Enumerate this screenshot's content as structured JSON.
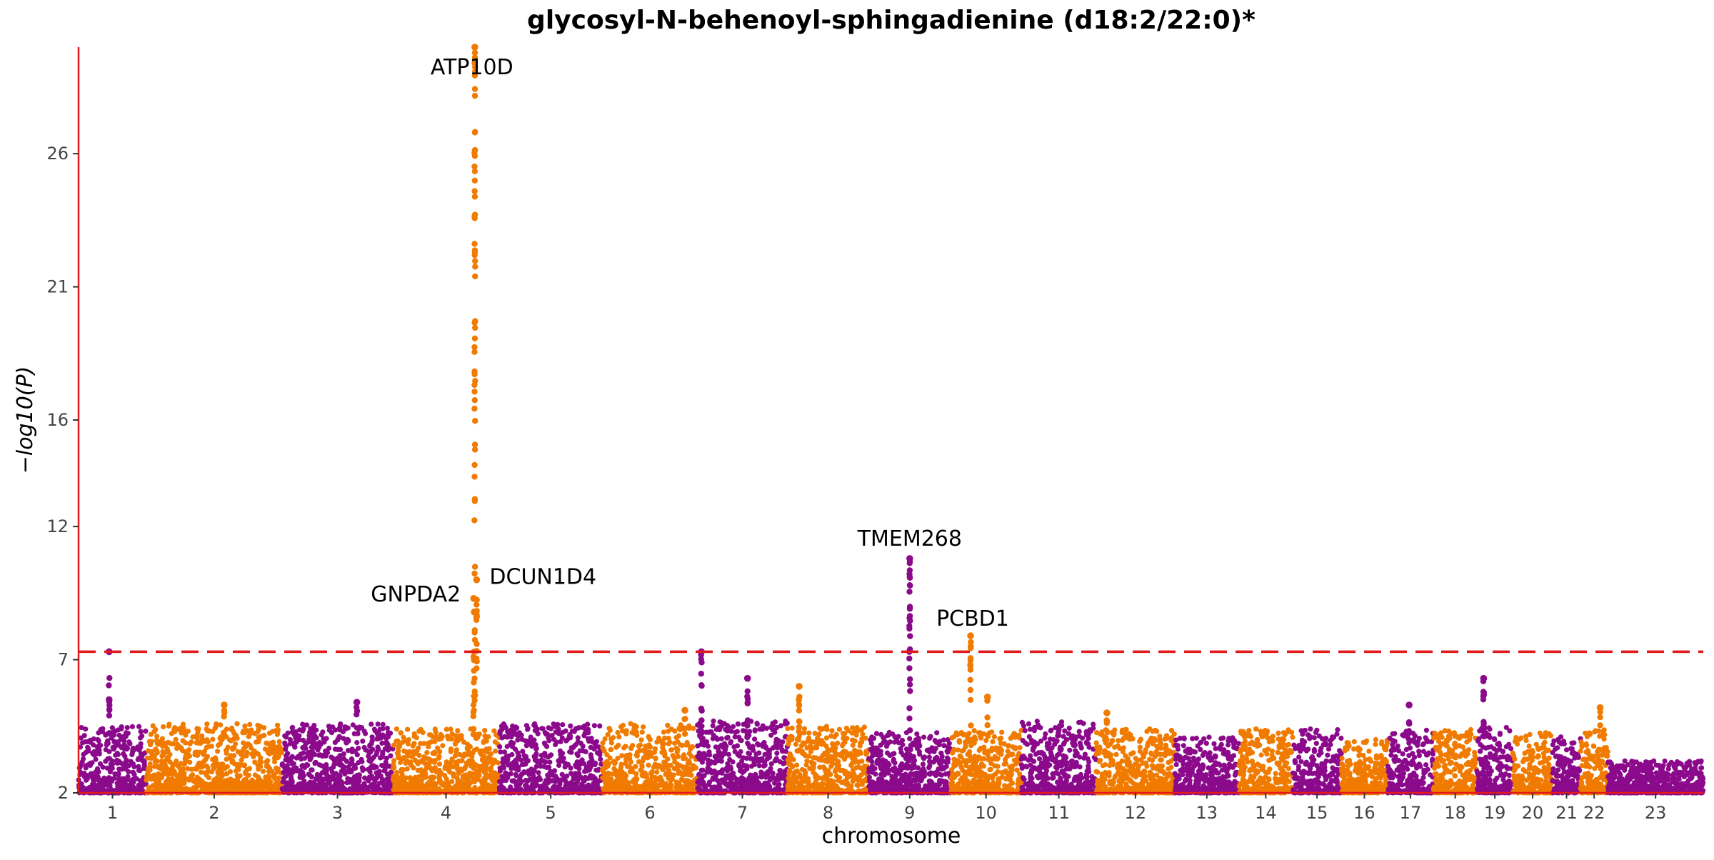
{
  "chart_data": {
    "type": "scatter",
    "title": "glycosyl-N-behenoyl-sphingadienine (d18:2/22:0)*",
    "xlabel": "chromosome",
    "ylabel": "−log10(P)",
    "ylim": [
      2,
      30
    ],
    "yticks": [
      2,
      7,
      12,
      16,
      21,
      26
    ],
    "significance_threshold": 7.3,
    "colors": {
      "odd_chromosome": "#8B0A8B",
      "even_chromosome": "#F07B00",
      "axis": "#e31a1c",
      "threshold_line": "#e31a1c"
    },
    "chromosomes": [
      {
        "label": "1",
        "start": 0,
        "end": 184,
        "base_max": 4.5
      },
      {
        "label": "2",
        "start": 184,
        "end": 552,
        "base_max": 4.6
      },
      {
        "label": "3",
        "start": 552,
        "end": 853,
        "base_max": 4.6
      },
      {
        "label": "4",
        "start": 853,
        "end": 1141,
        "base_max": 4.4
      },
      {
        "label": "5",
        "start": 1141,
        "end": 1421,
        "base_max": 4.6
      },
      {
        "label": "6",
        "start": 1421,
        "end": 1679,
        "base_max": 4.6
      },
      {
        "label": "7",
        "start": 1679,
        "end": 1923,
        "base_max": 4.7
      },
      {
        "label": "8",
        "start": 1923,
        "end": 2144,
        "base_max": 4.5
      },
      {
        "label": "9",
        "start": 2144,
        "end": 2366,
        "base_max": 4.3
      },
      {
        "label": "10",
        "start": 2366,
        "end": 2558,
        "base_max": 4.4
      },
      {
        "label": "11",
        "start": 2558,
        "end": 2761,
        "base_max": 4.7
      },
      {
        "label": "12",
        "start": 2761,
        "end": 2974,
        "base_max": 4.4
      },
      {
        "label": "13",
        "start": 2974,
        "end": 3148,
        "base_max": 4.1
      },
      {
        "label": "14",
        "start": 3148,
        "end": 3294,
        "base_max": 4.4
      },
      {
        "label": "15",
        "start": 3294,
        "end": 3426,
        "base_max": 4.4
      },
      {
        "label": "16",
        "start": 3426,
        "end": 3551,
        "base_max": 4.0
      },
      {
        "label": "17",
        "start": 3551,
        "end": 3676,
        "base_max": 4.4
      },
      {
        "label": "18",
        "start": 3676,
        "end": 3794,
        "base_max": 4.4
      },
      {
        "label": "19",
        "start": 3794,
        "end": 3891,
        "base_max": 4.5
      },
      {
        "label": "20",
        "start": 3891,
        "end": 3999,
        "base_max": 4.3
      },
      {
        "label": "21",
        "start": 3999,
        "end": 4075,
        "base_max": 4.1
      },
      {
        "label": "22",
        "start": 4075,
        "end": 4149,
        "base_max": 4.4
      },
      {
        "label": "23",
        "start": 4149,
        "end": 4408,
        "base_max": 3.2
      }
    ],
    "peaks": [
      {
        "chromosome": "1",
        "x": 83,
        "max": 7.3,
        "n": 4
      },
      {
        "chromosome": "1",
        "x": 83,
        "max": 5.5,
        "n": 4
      },
      {
        "chromosome": "2",
        "x": 395,
        "max": 5.3,
        "n": 4
      },
      {
        "chromosome": "3",
        "x": 755,
        "max": 5.4,
        "n": 3
      },
      {
        "chromosome": "4",
        "x": 1075,
        "max": 30.0,
        "n": 60
      },
      {
        "chromosome": "4",
        "x": 1072,
        "max": 9.3,
        "n": 14
      },
      {
        "chromosome": "4",
        "x": 1080,
        "max": 10.0,
        "n": 14
      },
      {
        "chromosome": "6",
        "x": 1645,
        "max": 5.1,
        "n": 4
      },
      {
        "chromosome": "7",
        "x": 1690,
        "max": 7.3,
        "n": 12
      },
      {
        "chromosome": "7",
        "x": 1815,
        "max": 6.3,
        "n": 10
      },
      {
        "chromosome": "8",
        "x": 1955,
        "max": 6.0,
        "n": 10
      },
      {
        "chromosome": "9",
        "x": 2255,
        "max": 10.8,
        "n": 28
      },
      {
        "chromosome": "10",
        "x": 2420,
        "max": 7.9,
        "n": 14
      },
      {
        "chromosome": "10",
        "x": 2466,
        "max": 5.6,
        "n": 3
      },
      {
        "chromosome": "12",
        "x": 2790,
        "max": 5.0,
        "n": 3
      },
      {
        "chromosome": "17",
        "x": 3610,
        "max": 5.3,
        "n": 3
      },
      {
        "chromosome": "19",
        "x": 3812,
        "max": 6.3,
        "n": 12
      },
      {
        "chromosome": "22",
        "x": 4128,
        "max": 5.2,
        "n": 3
      }
    ],
    "annotations": [
      {
        "label": "ATP10D",
        "chromosome": "4",
        "x": 1075,
        "y": 30.0
      },
      {
        "label": "DCUN1D4",
        "chromosome": "4",
        "x": 1080,
        "y": 10.0
      },
      {
        "label": "GNPDA2",
        "chromosome": "4",
        "x": 1072,
        "y": 9.3
      },
      {
        "label": "TMEM268",
        "chromosome": "9",
        "x": 2255,
        "y": 10.8
      },
      {
        "label": "PCBD1",
        "chromosome": "10",
        "x": 2420,
        "y": 7.9
      }
    ]
  }
}
